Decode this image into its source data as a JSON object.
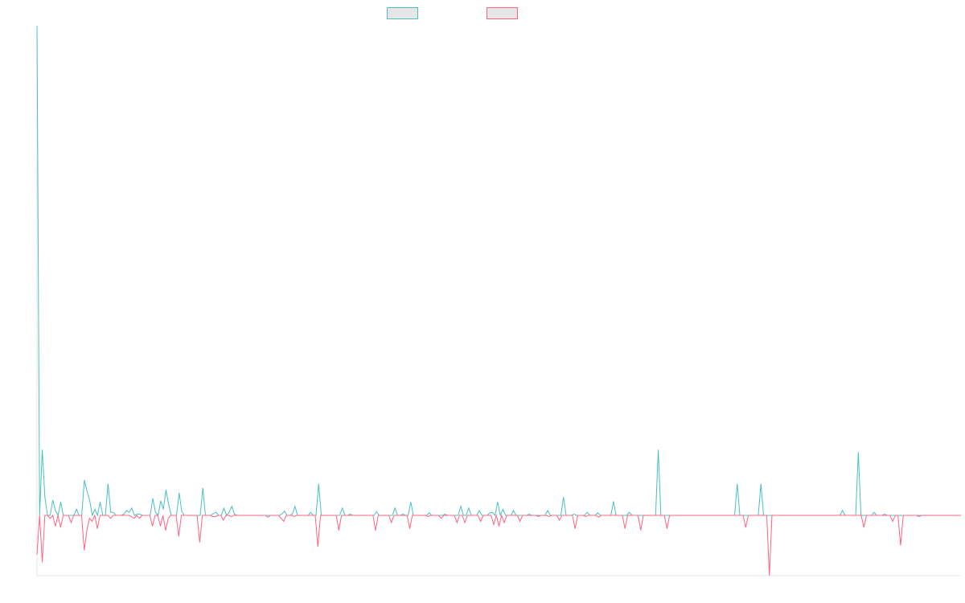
{
  "chart_data": {
    "type": "line",
    "title": "",
    "xlabel": "",
    "ylabel": "",
    "legend": {
      "placement": "top-center",
      "show_labels": false
    },
    "grid": false,
    "ylim": [
      -1.0,
      8.0
    ],
    "series": [
      {
        "color": "#4bc0c0",
        "values": [
          8.05,
          0,
          1.08,
          0.3,
          0,
          0,
          0.25,
          0.08,
          0,
          0.22,
          0,
          0,
          0,
          0,
          0,
          0.1,
          0,
          0,
          0.58,
          0.4,
          0.25,
          0,
          0.1,
          0,
          0.22,
          0,
          0,
          0.52,
          0.05,
          0.05,
          0,
          0,
          0,
          0.02,
          0.08,
          0.05,
          0.12,
          0,
          0.02,
          0.02,
          0,
          0,
          0,
          0,
          0.28,
          0.05,
          0,
          0.24,
          0.1,
          0.42,
          0.18,
          0,
          0,
          0,
          0.37,
          0.06,
          0,
          0,
          0,
          0,
          0,
          0,
          0,
          0.45,
          0,
          0,
          0,
          0.03,
          0.05,
          0,
          0,
          0.12,
          0,
          0.05,
          0.15,
          0.02,
          0,
          0,
          0,
          0,
          0,
          0,
          0,
          0,
          0,
          0,
          0,
          0,
          0,
          0,
          0,
          0,
          0,
          0.02,
          0.07,
          0,
          0,
          0.02,
          0.15,
          0,
          0,
          0,
          0,
          0,
          0.05,
          0,
          0,
          0.52,
          0,
          0,
          0,
          0,
          0,
          0,
          0,
          0,
          0.12,
          0,
          0,
          0.02,
          0,
          0,
          0,
          0,
          0,
          0,
          0,
          0,
          0,
          0.06,
          0,
          0,
          0,
          0,
          0,
          0,
          0.12,
          0,
          0,
          0.02,
          0,
          0,
          0.22,
          0,
          0,
          0,
          0,
          0,
          0,
          0.04,
          0,
          0,
          0,
          0,
          0,
          0.02,
          0,
          0,
          0,
          0,
          0,
          0.15,
          0,
          0,
          0.12,
          0,
          0,
          0,
          0.08,
          0,
          0,
          0,
          0.04,
          0.05,
          0,
          0.22,
          0,
          0.1,
          0,
          0,
          0,
          0.08,
          0,
          0,
          0,
          0,
          0,
          0.02,
          0,
          0,
          0,
          0,
          0,
          0,
          0.08,
          0,
          0,
          0,
          0,
          0,
          0.3,
          0,
          0,
          0,
          0.02,
          0,
          0,
          0,
          0,
          0.05,
          0,
          0,
          0,
          0.04,
          0,
          0,
          0,
          0,
          0,
          0.23,
          0,
          0,
          0,
          0,
          0,
          0.05,
          0,
          0,
          0,
          0,
          0,
          0,
          0,
          0,
          0,
          0,
          1.08,
          0,
          0,
          0,
          0,
          0,
          0,
          0,
          0,
          0,
          0,
          0,
          0,
          0,
          0,
          0,
          0,
          0,
          0,
          0,
          0,
          0,
          0,
          0,
          0,
          0,
          0,
          0,
          0,
          0,
          0.52,
          0,
          0,
          0,
          0,
          0,
          0,
          0,
          0,
          0.52,
          0,
          0,
          0,
          0,
          0,
          0,
          0,
          0,
          0,
          0,
          0,
          0,
          0,
          0,
          0,
          0,
          0,
          0,
          0,
          0,
          0,
          0,
          0,
          0,
          0,
          0,
          0,
          0,
          0,
          0,
          0.08,
          0,
          0,
          0,
          0,
          0,
          1.04,
          0,
          0,
          0,
          0,
          0,
          0.05,
          0,
          0,
          0,
          0.02,
          0,
          0,
          0,
          0,
          0,
          0,
          0,
          0,
          0,
          0,
          0,
          0,
          0,
          0,
          0,
          0,
          0,
          0,
          0,
          0,
          0,
          0,
          0,
          0,
          0,
          0,
          0,
          0,
          0
        ],
        "x_start": 0,
        "x_step": 1
      },
      {
        "color": "#ff6384",
        "values": [
          -0.65,
          0,
          -0.78,
          0,
          0,
          -0.05,
          0,
          -0.18,
          0,
          -0.2,
          0,
          0,
          0,
          -0.12,
          0,
          0,
          0,
          0,
          -0.58,
          -0.25,
          -0.05,
          -0.1,
          0,
          -0.22,
          0,
          0,
          0,
          0,
          -0.05,
          0,
          0,
          0,
          0,
          0,
          0,
          0,
          -0.02,
          -0.05,
          0,
          -0.05,
          0,
          0,
          0,
          0,
          -0.18,
          0,
          0,
          -0.18,
          0,
          -0.25,
          -0.05,
          0,
          0,
          0,
          -0.35,
          0,
          0,
          0,
          0,
          0,
          0,
          0,
          -0.45,
          0,
          0,
          0,
          0,
          -0.02,
          -0.02,
          0,
          0,
          -0.08,
          0,
          0,
          -0.02,
          0,
          0,
          0,
          0,
          0,
          0,
          0,
          0,
          0,
          0,
          0,
          0,
          0,
          -0.03,
          0,
          0,
          0,
          0,
          -0.05,
          -0.1,
          0,
          0,
          0,
          -0.02,
          0,
          0,
          0,
          0,
          0,
          0,
          0,
          0,
          -0.52,
          0,
          0,
          0,
          0,
          0,
          0,
          0,
          -0.25,
          0,
          0,
          0,
          0,
          0,
          0,
          0,
          0,
          0,
          0,
          0,
          0,
          0,
          -0.25,
          0,
          0,
          0,
          0,
          0,
          -0.12,
          0,
          0,
          0,
          0,
          0,
          0,
          -0.22,
          0,
          0,
          0,
          0,
          0,
          0,
          -0.02,
          0,
          0,
          0,
          0,
          -0.05,
          0,
          0,
          0,
          0,
          0,
          -0.12,
          0,
          0,
          -0.12,
          0,
          0,
          0,
          0,
          0,
          -0.1,
          0,
          0,
          0,
          0,
          -0.15,
          0,
          -0.18,
          0,
          -0.12,
          0,
          0,
          0,
          0,
          0,
          -0.1,
          0,
          0,
          0,
          0,
          0,
          0,
          -0.02,
          0,
          0,
          0,
          -0.02,
          0,
          0,
          0,
          -0.08,
          0,
          0,
          0,
          0,
          0,
          -0.22,
          0,
          0,
          0,
          -0.02,
          0,
          0,
          0,
          0,
          -0.03,
          0,
          0,
          0,
          0,
          0,
          0,
          0,
          0,
          0,
          -0.22,
          0,
          0,
          0,
          0,
          0,
          -0.25,
          0,
          0,
          0,
          0,
          0,
          0,
          0,
          0,
          0,
          -0.22,
          0,
          0,
          0,
          0,
          0,
          0,
          0,
          0,
          0,
          0,
          0,
          0,
          0,
          0,
          0,
          0,
          0,
          0,
          0,
          0,
          0,
          0,
          0,
          0,
          0,
          0,
          0,
          0,
          0,
          -0.2,
          0,
          0,
          0,
          0,
          0,
          0,
          0,
          0,
          -1.0,
          0,
          0,
          0,
          0,
          0,
          0,
          0,
          0,
          0,
          0,
          0,
          0,
          0,
          0,
          0,
          0,
          0,
          0,
          0,
          0,
          0,
          0,
          0,
          0,
          0,
          0,
          0,
          0,
          0,
          0,
          0,
          0,
          0,
          0,
          0,
          -0.2,
          0,
          0,
          0,
          0,
          0,
          0,
          0,
          0,
          0,
          0,
          -0.1,
          0,
          0,
          -0.5,
          0,
          0,
          0,
          0,
          0,
          0,
          -0.02,
          0,
          0,
          0,
          0,
          0,
          0,
          0,
          0,
          0,
          0,
          0,
          0,
          0,
          0,
          0,
          0
        ],
        "x_start": 0,
        "x_step": 1
      }
    ]
  }
}
